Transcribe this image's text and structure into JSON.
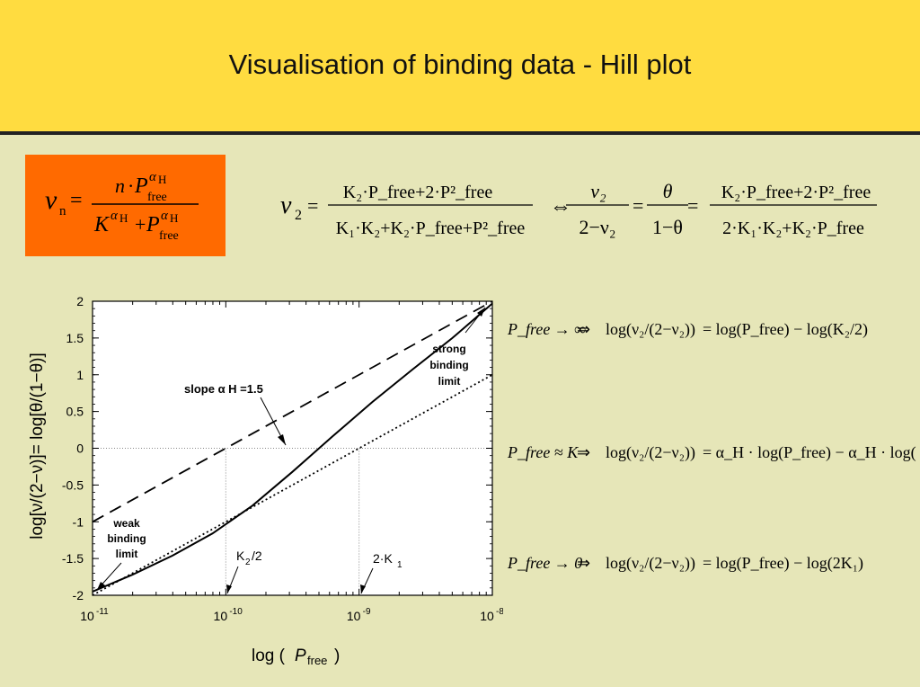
{
  "slide": {
    "title": "Visualisation of binding data - Hill plot"
  },
  "colors": {
    "header": "#ffdc40",
    "background": "#e6e6b8",
    "formula_box": "#ff6a00"
  },
  "formula_box": {
    "nu": "ν",
    "nu_sub": "n",
    "eq": "=",
    "num_n": "n",
    "num_dot": "·",
    "num_P": "P",
    "num_free": "free",
    "num_alpha": "α",
    "num_H": "H",
    "den_K": "K",
    "den_alpha": "α",
    "den_H": "H",
    "den_plus": "+",
    "den_P": "P",
    "den_free": "free",
    "den_alpha2": "α",
    "den_H2": "H"
  },
  "top_equation": {
    "lhs": "ν",
    "lhs_sub": "2",
    "eq": "=",
    "frac1_num": "K₂·P_free+2·P²_free",
    "frac1_den": "K₁·K₂+K₂·P_free+P²_free",
    "iff": "⇔",
    "frac2_num": "ν₂",
    "frac2_den": "2−ν₂",
    "eq2": "=",
    "frac3_num": "θ",
    "frac3_den": "1−θ",
    "eq3": "=",
    "frac4_num": "K₂·P_free+2·P²_free",
    "frac4_den": "2·K₁·K₂+K₂·P_free"
  },
  "limits": [
    {
      "cond": "P_free → ∞",
      "arrow": "⇒",
      "lhs": "log(ν₂/(2−ν₂))",
      "rhs": "= log(P_free) − log(K₂/2)"
    },
    {
      "cond": "P_free ≈ K",
      "arrow": "⇒",
      "lhs": "log(ν₂/(2−ν₂))",
      "rhs": "= α_H · log(P_free) − α_H · log(K)"
    },
    {
      "cond": "P_free → 0",
      "arrow": "⇒",
      "lhs": "log(ν₂/(2−ν₂))",
      "rhs": "= log(P_free) − log(2K₁)"
    }
  ],
  "chart_data": {
    "type": "line",
    "xlabel": "log (P free)",
    "xlabel_P": "P",
    "xlabel_free": "free",
    "ylabel": "log[ν/(2−ν)]= log[θ/(1−θ)]",
    "xlim": [
      -11,
      -8
    ],
    "ylim": [
      -2,
      2
    ],
    "x_tick_labels": [
      {
        "base": "10",
        "exp": "-11",
        "value": -11
      },
      {
        "base": "10",
        "exp": "-10",
        "value": -10
      },
      {
        "base": "10",
        "exp": "-9",
        "value": -9
      },
      {
        "base": "10",
        "exp": "-8",
        "value": -8
      }
    ],
    "y_tick_labels": [
      "2",
      "1.5",
      "1",
      "0.5",
      "0",
      "-0.5",
      "-1",
      "-1.5",
      "-2"
    ],
    "y_tick_values": [
      2,
      1.5,
      1,
      0.5,
      0,
      -0.5,
      -1,
      -1.5,
      -2
    ],
    "grid": false,
    "series": [
      {
        "style": "solid",
        "x": [
          -11,
          -10.7,
          -10.4,
          -10.1,
          -9.8,
          -9.5,
          -9.2,
          -8.9,
          -8.6,
          -8.3,
          -8.0
        ],
        "y": [
          -1.95,
          -1.72,
          -1.46,
          -1.16,
          -0.78,
          -0.32,
          0.16,
          0.63,
          1.07,
          1.5,
          1.97
        ]
      },
      {
        "style": "dashed",
        "x": [
          -11,
          -8
        ],
        "y": [
          -1.0,
          2.0
        ]
      },
      {
        "style": "dotted",
        "x": [
          -11,
          -8
        ],
        "y": [
          -2.0,
          1.0
        ]
      }
    ],
    "reference_lines": [
      {
        "axis": "y",
        "value": 0
      },
      {
        "axis": "x",
        "value": -10
      },
      {
        "axis": "x",
        "value": -9
      }
    ],
    "annotations": {
      "slope": "slope α H =1.5",
      "strong": [
        "strong",
        "binding",
        "limit"
      ],
      "weak": [
        "weak",
        "binding",
        "limit"
      ],
      "k2half": "K2/2",
      "k2half_main": "K",
      "k2half_sub": "2",
      "k2half_rest": "/2",
      "twok1": "2·K1",
      "twok1_main": "2·K",
      "twok1_sub": "1"
    }
  }
}
